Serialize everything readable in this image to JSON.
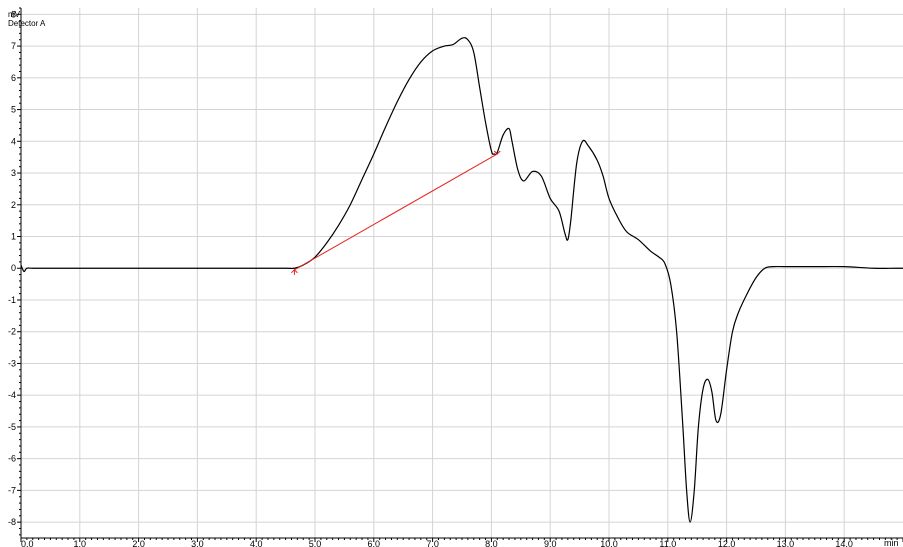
{
  "chart_data": {
    "type": "line",
    "title": "",
    "detector_label": "Detector A",
    "xlabel": "min",
    "ylabel": "mV",
    "xlim": [
      0.0,
      15.0
    ],
    "ylim": [
      -8.5,
      8.2
    ],
    "grid": true,
    "x_ticks": [
      0.0,
      1.0,
      2.0,
      3.0,
      4.0,
      5.0,
      6.0,
      7.0,
      8.0,
      9.0,
      10.0,
      11.0,
      12.0,
      13.0,
      14.0
    ],
    "x_tick_labels": [
      "0.0",
      "1.0",
      "2.0",
      "3.0",
      "4.0",
      "5.0",
      "6.0",
      "7.0",
      "8.0",
      "9.0",
      "10.0",
      "11.0",
      "12.0",
      "13.0",
      "14.0"
    ],
    "y_ticks": [
      -8,
      -7,
      -6,
      -5,
      -4,
      -3,
      -2,
      -1,
      0,
      1,
      2,
      3,
      4,
      5,
      6,
      7,
      8
    ],
    "y_tick_labels": [
      "-8",
      "-7",
      "-6",
      "-5",
      "-4",
      "-3",
      "-2",
      "-1",
      "0",
      "1",
      "2",
      "3",
      "4",
      "5",
      "6",
      "7",
      "8"
    ],
    "series": [
      {
        "color": "#000000",
        "x": [
          0.0,
          0.05,
          0.1,
          0.2,
          0.5,
          1.0,
          2.0,
          3.0,
          4.0,
          4.5,
          4.65,
          4.8,
          5.0,
          5.2,
          5.4,
          5.6,
          5.8,
          6.0,
          6.2,
          6.4,
          6.6,
          6.8,
          7.0,
          7.2,
          7.35,
          7.5,
          7.6,
          7.7,
          7.8,
          7.9,
          8.0,
          8.05,
          8.1,
          8.2,
          8.3,
          8.35,
          8.45,
          8.55,
          8.7,
          8.85,
          9.0,
          9.15,
          9.25,
          9.3,
          9.35,
          9.45,
          9.55,
          9.65,
          9.8,
          9.9,
          10.0,
          10.15,
          10.3,
          10.5,
          10.7,
          10.85,
          10.95,
          11.05,
          11.15,
          11.25,
          11.32,
          11.38,
          11.45,
          11.52,
          11.6,
          11.68,
          11.75,
          11.82,
          11.9,
          12.0,
          12.1,
          12.2,
          12.35,
          12.5,
          12.65,
          12.8,
          13.0,
          13.5,
          14.0,
          14.5,
          15.0
        ],
        "y": [
          0.1,
          -0.1,
          0.0,
          0.0,
          0.0,
          0.0,
          0.0,
          0.0,
          0.0,
          0.0,
          0.0,
          0.1,
          0.35,
          0.8,
          1.35,
          2.0,
          2.8,
          3.6,
          4.45,
          5.25,
          5.95,
          6.5,
          6.85,
          7.0,
          7.05,
          7.25,
          7.2,
          6.8,
          5.7,
          4.6,
          3.7,
          3.6,
          3.65,
          4.2,
          4.4,
          4.0,
          3.1,
          2.75,
          3.05,
          2.9,
          2.2,
          1.8,
          1.1,
          0.9,
          1.5,
          3.3,
          4.0,
          3.85,
          3.4,
          2.9,
          2.2,
          1.6,
          1.15,
          0.9,
          0.55,
          0.35,
          0.15,
          -0.5,
          -2.0,
          -4.8,
          -7.0,
          -8.0,
          -7.0,
          -5.0,
          -3.8,
          -3.5,
          -3.9,
          -4.8,
          -4.6,
          -3.2,
          -2.0,
          -1.4,
          -0.8,
          -0.3,
          0.0,
          0.05,
          0.05,
          0.05,
          0.05,
          0.0,
          0.0
        ]
      },
      {
        "color": "#e8211b",
        "x": [
          4.65,
          8.1
        ],
        "y": [
          -0.05,
          3.6
        ]
      }
    ]
  }
}
